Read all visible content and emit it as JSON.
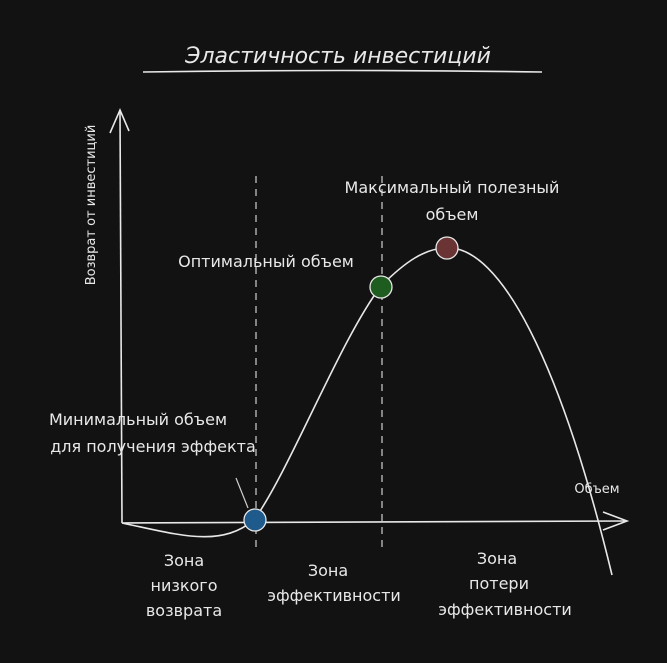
{
  "title": "Эластичность инвестиций",
  "axes": {
    "y_label": "Возврат от инвестиций",
    "x_label": "Объем"
  },
  "points": {
    "min_label_line1": "Минимальный объем",
    "min_label_line2": "для получения эффекта",
    "optimal_label": "Оптимальный объем",
    "max_label_line1": "Максимальный полезный",
    "max_label_line2": "объем"
  },
  "zones": {
    "low": [
      "Зона",
      "низкого",
      "возврата"
    ],
    "effective": [
      "Зона",
      "эффективности"
    ],
    "loss": [
      "Зона",
      "потери",
      "эффективности"
    ]
  },
  "colors": {
    "background": "#121212",
    "stroke": "#e8e8e8",
    "min_point": "#1f5a8c",
    "optimal_point": "#1f5c1f",
    "max_point": "#6b3434"
  }
}
